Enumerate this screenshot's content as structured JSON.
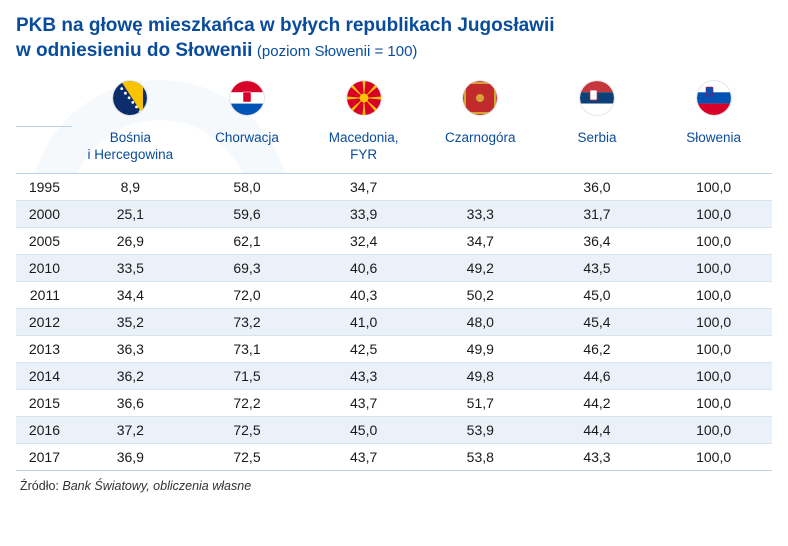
{
  "title": {
    "line1": "PKB na głowę mieszkańca w byłych republikach Jugosławii",
    "line2_main": "w odniesieniu do Słowenii",
    "line2_note": "(poziom Słowenii = 100)"
  },
  "table": {
    "type": "table",
    "background_color": "#ffffff",
    "stripe_color": "#eaf1f9",
    "border_color": "#d7e4f1",
    "header_text_color": "#0a4c9c",
    "body_text_color": "#1a1a1a",
    "header_fontsize": 13.5,
    "body_fontsize": 14,
    "columns": [
      {
        "key": "bih",
        "label": "Bośnia\ni Hercegowina",
        "flag": "bih"
      },
      {
        "key": "hrv",
        "label": "Chorwacja",
        "flag": "hrv"
      },
      {
        "key": "mkd",
        "label": "Macedonia,\nFYR",
        "flag": "mkd"
      },
      {
        "key": "mne",
        "label": "Czarnogóra",
        "flag": "mne"
      },
      {
        "key": "srb",
        "label": "Serbia",
        "flag": "srb"
      },
      {
        "key": "svn",
        "label": "Słowenia",
        "flag": "svn"
      }
    ],
    "years": [
      "1995",
      "2000",
      "2005",
      "2010",
      "2011",
      "2012",
      "2013",
      "2014",
      "2015",
      "2016",
      "2017"
    ],
    "rows": [
      [
        "8,9",
        "58,0",
        "34,7",
        "",
        "36,0",
        "100,0"
      ],
      [
        "25,1",
        "59,6",
        "33,9",
        "33,3",
        "31,7",
        "100,0"
      ],
      [
        "26,9",
        "62,1",
        "32,4",
        "34,7",
        "36,4",
        "100,0"
      ],
      [
        "33,5",
        "69,3",
        "40,6",
        "49,2",
        "43,5",
        "100,0"
      ],
      [
        "34,4",
        "72,0",
        "40,3",
        "50,2",
        "45,0",
        "100,0"
      ],
      [
        "35,2",
        "73,2",
        "41,0",
        "48,0",
        "45,4",
        "100,0"
      ],
      [
        "36,3",
        "73,1",
        "42,5",
        "49,9",
        "46,2",
        "100,0"
      ],
      [
        "36,2",
        "71,5",
        "43,3",
        "49,8",
        "44,6",
        "100,0"
      ],
      [
        "36,6",
        "72,2",
        "43,7",
        "51,7",
        "44,2",
        "100,0"
      ],
      [
        "37,2",
        "72,5",
        "45,0",
        "53,9",
        "44,4",
        "100,0"
      ],
      [
        "36,9",
        "72,5",
        "43,7",
        "53,8",
        "43,3",
        "100,0"
      ]
    ]
  },
  "source": {
    "label": "Źródło:",
    "text": "Bank Światowy, obliczenia własne"
  },
  "flags": {
    "bih": {
      "bg": "#0b2d6b",
      "accent": "#f8c300"
    },
    "hrv": {
      "top": "#d80027",
      "mid": "#ffffff",
      "bot": "#0052b4"
    },
    "mkd": {
      "bg": "#d80027",
      "sun": "#f8c300"
    },
    "mne": {
      "bg": "#c22b2b",
      "border": "#d4a437"
    },
    "srb": {
      "top": "#c6363c",
      "mid": "#0c4076",
      "bot": "#ffffff"
    },
    "svn": {
      "top": "#ffffff",
      "mid": "#0052b4",
      "bot": "#d80027"
    }
  }
}
